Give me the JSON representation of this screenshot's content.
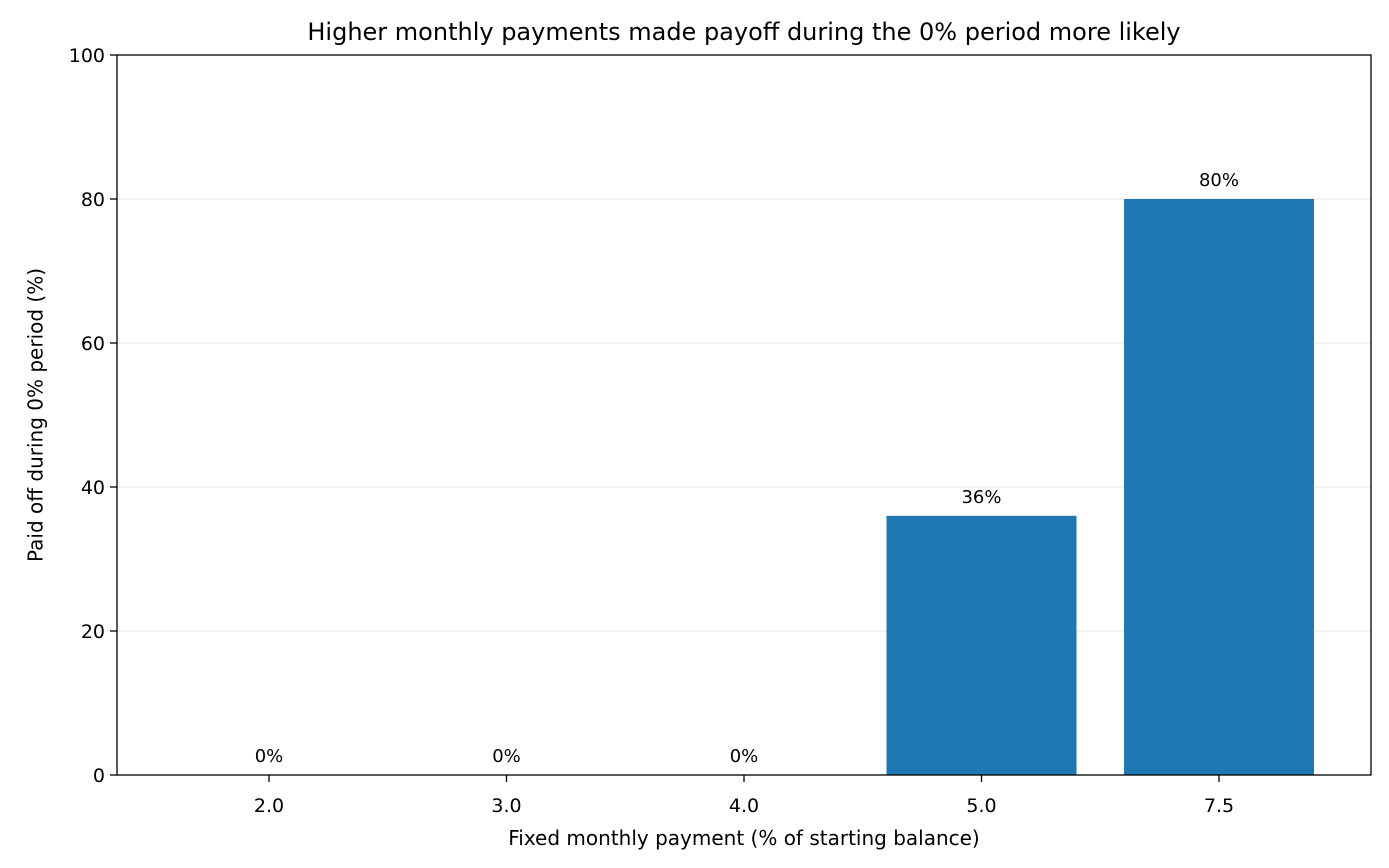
{
  "chart_data": {
    "type": "bar",
    "title": "Higher monthly payments made payoff during the 0% period more likely",
    "xlabel": "Fixed monthly payment (% of starting balance)",
    "ylabel": "Paid off during 0% period (%)",
    "categories": [
      "2.0",
      "3.0",
      "4.0",
      "5.0",
      "7.5"
    ],
    "values": [
      0,
      0,
      0,
      36,
      80
    ],
    "data_labels": [
      "0%",
      "0%",
      "0%",
      "36%",
      "80%"
    ],
    "ylim": [
      0,
      100
    ],
    "yticks": [
      0,
      20,
      40,
      60,
      80,
      100
    ],
    "grid": "horizontal",
    "bar_color": "#1f77b4",
    "grid_color": "#ebebeb"
  }
}
